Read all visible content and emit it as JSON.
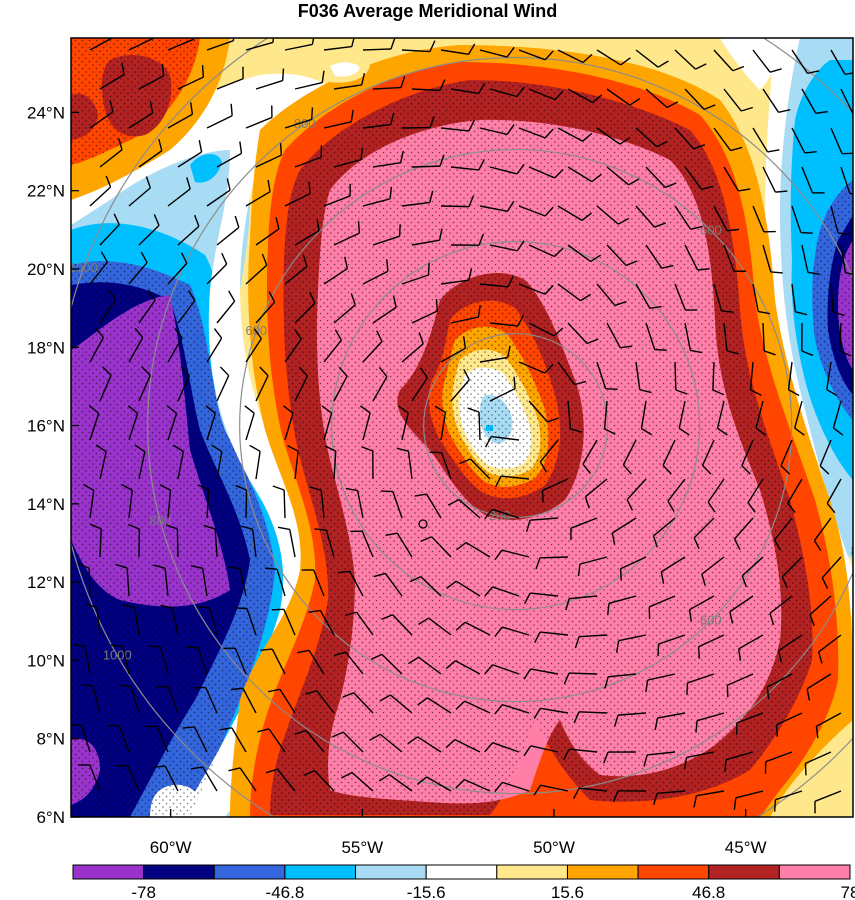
{
  "chart_data": {
    "type": "heatmap",
    "title": "F036 Average Meridional Wind",
    "lat_ticks": [
      "6°N",
      "8°N",
      "10°N",
      "12°N",
      "14°N",
      "16°N",
      "18°N",
      "20°N",
      "22°N",
      "24°N"
    ],
    "lon_ticks": [
      "60°W",
      "55°W",
      "50°W",
      "45°W"
    ],
    "lat_range": [
      6,
      25.9
    ],
    "lon_range": [
      -62.6,
      -42.2
    ],
    "colorbar": {
      "colors": [
        "#9933cc",
        "#000080",
        "#3366dd",
        "#00bfff",
        "#a8dcf5",
        "#ffffff",
        "#ffe88c",
        "#ffa500",
        "#ff4500",
        "#b22222",
        "#ff7fa8"
      ],
      "labels": [
        "-78",
        "-46.8",
        "-15.6",
        "15.6",
        "46.8",
        "78"
      ]
    },
    "range_rings": {
      "center": [
        -51.0,
        16.0
      ],
      "radii": [
        200,
        400,
        600,
        800,
        1000
      ],
      "labels": [
        "200",
        "600",
        "600",
        "600",
        "800",
        "800",
        "800",
        "1000",
        "1000",
        "1000",
        "1000",
        "1000",
        "1000",
        "1000"
      ]
    },
    "grid": false,
    "stippling": true,
    "wind_barbs": true
  }
}
